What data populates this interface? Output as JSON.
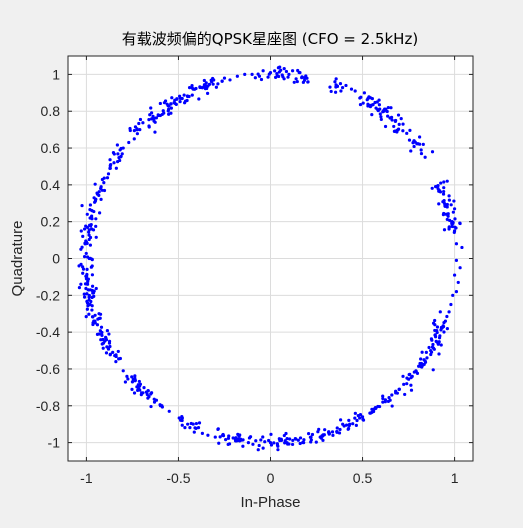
{
  "chart_data": {
    "type": "scatter",
    "title": "有载波频偏的QPSK星座图 (CFO = 2.5kHz)",
    "xlabel": "In-Phase",
    "ylabel": "Quadrature",
    "xlim": [
      -1.1,
      1.1
    ],
    "ylim": [
      -1.1,
      1.1
    ],
    "xticks": [
      -1,
      -0.5,
      0,
      0.5,
      1
    ],
    "xtick_labels": [
      "-1",
      "-0.5",
      "0",
      "0.5",
      "1"
    ],
    "yticks": [
      1,
      0.8,
      0.6,
      0.4,
      0.2,
      0,
      -0.2,
      -0.4,
      -0.6,
      -0.8,
      -1
    ],
    "ytick_labels": [
      "1",
      "0.8",
      "0.6",
      "0.4",
      "0.2",
      "0",
      "-0.2",
      "-0.4",
      "-0.6",
      "-0.8",
      "-1"
    ],
    "grid": true,
    "marker_color": "#0000ff",
    "background_color": "#f0f0f0",
    "axes_color": "#ffffff",
    "gaps_angle_deg": [
      [
        -16,
        8
      ],
      [
        24,
        35
      ],
      [
        61,
        67
      ],
      [
        71,
        77
      ],
      [
        95,
        105
      ],
      [
        138,
        143
      ],
      [
        214,
        220
      ],
      [
        234,
        240
      ],
      [
        247,
        251
      ]
    ],
    "series": [
      {
        "values": [
          [
            1.01,
            0.08
          ],
          [
            1.04,
            0.06
          ],
          [
            0.97,
            0.16
          ],
          [
            1.0,
            0.15
          ],
          [
            0.99,
            0.19
          ],
          [
            1.03,
            0.19
          ],
          [
            0.96,
            0.28
          ],
          [
            1.0,
            0.27
          ],
          [
            0.94,
            0.35
          ],
          [
            0.97,
            0.34
          ],
          [
            0.91,
            0.38
          ],
          [
            0.96,
            0.42
          ],
          [
            0.84,
            0.55
          ],
          [
            0.88,
            0.58
          ],
          [
            0.82,
            0.57
          ],
          [
            0.83,
            0.62
          ],
          [
            0.78,
            0.64
          ],
          [
            0.81,
            0.66
          ],
          [
            0.74,
            0.68
          ],
          [
            0.72,
            0.73
          ],
          [
            0.71,
            0.76
          ],
          [
            0.68,
            0.75
          ],
          [
            0.64,
            0.82
          ],
          [
            0.58,
            0.85
          ],
          [
            0.53,
            0.87
          ],
          [
            0.51,
            0.9
          ],
          [
            0.46,
            0.91
          ],
          [
            0.44,
            0.92
          ],
          [
            0.41,
            0.94
          ],
          [
            0.38,
            0.95
          ],
          [
            0.35,
            0.96
          ],
          [
            0.16,
            1.01
          ],
          [
            0.12,
            1.02
          ],
          [
            0.1,
            1.0
          ],
          [
            0.05,
            1.04
          ],
          [
            0.0,
            1.01
          ],
          [
            -0.04,
            1.02
          ],
          [
            -0.06,
            0.99
          ],
          [
            -0.1,
            1.0
          ],
          [
            -0.14,
            1.0
          ],
          [
            -0.18,
            0.99
          ],
          [
            -0.22,
            0.97
          ],
          [
            -0.25,
            0.98
          ],
          [
            -0.32,
            0.96
          ],
          [
            -0.35,
            0.93
          ],
          [
            -0.38,
            0.93
          ],
          [
            -0.42,
            0.92
          ],
          [
            -0.45,
            0.88
          ],
          [
            -0.49,
            0.87
          ],
          [
            -0.52,
            0.86
          ],
          [
            -0.54,
            0.84
          ],
          [
            -0.58,
            0.79
          ],
          [
            -0.61,
            0.78
          ],
          [
            -0.64,
            0.76
          ],
          [
            -0.66,
            0.72
          ],
          [
            -0.71,
            0.7
          ],
          [
            -0.74,
            0.65
          ],
          [
            -0.77,
            0.63
          ],
          [
            -0.8,
            0.6
          ],
          [
            -0.85,
            0.52
          ],
          [
            -0.87,
            0.49
          ],
          [
            -0.88,
            0.46
          ],
          [
            -0.92,
            0.39
          ],
          [
            -0.94,
            0.35
          ],
          [
            -0.95,
            0.32
          ],
          [
            -0.97,
            0.26
          ],
          [
            -0.98,
            0.22
          ],
          [
            -1.01,
            0.16
          ],
          [
            -1.02,
            0.12
          ],
          [
            -1.0,
            0.09
          ],
          [
            -1.03,
            0.05
          ],
          [
            -1.01,
            0.01
          ],
          [
            -1.04,
            -0.04
          ],
          [
            -1.02,
            -0.08
          ],
          [
            -1.0,
            -0.11
          ],
          [
            -1.03,
            -0.14
          ],
          [
            -0.99,
            -0.17
          ],
          [
            -1.01,
            -0.21
          ],
          [
            -0.98,
            -0.25
          ],
          [
            -0.97,
            -0.28
          ],
          [
            -0.96,
            -0.34
          ],
          [
            -0.94,
            -0.36
          ],
          [
            -0.93,
            -0.41
          ],
          [
            -0.91,
            -0.44
          ],
          [
            -0.88,
            -0.49
          ],
          [
            -0.87,
            -0.52
          ],
          [
            -0.84,
            -0.56
          ],
          [
            -0.8,
            -0.61
          ],
          [
            -0.78,
            -0.64
          ],
          [
            -0.75,
            -0.67
          ],
          [
            -0.72,
            -0.7
          ],
          [
            -0.7,
            -0.73
          ],
          [
            -0.66,
            -0.75
          ],
          [
            -0.63,
            -0.78
          ],
          [
            -0.59,
            -0.8
          ],
          [
            -0.55,
            -0.83
          ],
          [
            -0.48,
            -0.88
          ],
          [
            -0.45,
            -0.9
          ],
          [
            -0.41,
            -0.92
          ],
          [
            -0.37,
            -0.95
          ],
          [
            -0.34,
            -0.96
          ],
          [
            -0.3,
            -0.97
          ],
          [
            -0.26,
            -0.96
          ],
          [
            -0.23,
            -1.01
          ],
          [
            -0.19,
            -0.99
          ],
          [
            -0.15,
            -1.02
          ],
          [
            -0.12,
            -1.0
          ],
          [
            -0.08,
            -0.99
          ],
          [
            -0.04,
            -1.03
          ],
          [
            0.0,
            -1.0
          ],
          [
            0.04,
            -1.02
          ],
          [
            0.08,
            -0.99
          ],
          [
            0.12,
            -1.01
          ],
          [
            0.18,
            -1.0
          ],
          [
            0.22,
            -0.97
          ],
          [
            0.27,
            -0.97
          ],
          [
            0.32,
            -0.95
          ],
          [
            0.36,
            -0.94
          ],
          [
            0.4,
            -0.91
          ],
          [
            0.43,
            -0.9
          ],
          [
            0.47,
            -0.88
          ],
          [
            0.5,
            -0.86
          ],
          [
            0.54,
            -0.84
          ],
          [
            0.57,
            -0.81
          ],
          [
            0.61,
            -0.78
          ],
          [
            0.65,
            -0.77
          ],
          [
            0.68,
            -0.73
          ],
          [
            0.7,
            -0.71
          ],
          [
            0.74,
            -0.68
          ],
          [
            0.77,
            -0.64
          ],
          [
            0.79,
            -0.61
          ],
          [
            0.82,
            -0.57
          ],
          [
            0.85,
            -0.54
          ],
          [
            0.87,
            -0.5
          ],
          [
            0.9,
            -0.45
          ],
          [
            0.92,
            -0.42
          ],
          [
            0.94,
            -0.37
          ],
          [
            0.95,
            -0.34
          ],
          [
            0.97,
            -0.29
          ],
          [
            0.98,
            -0.25
          ],
          [
            0.99,
            -0.2
          ],
          [
            1.01,
            -0.18
          ],
          [
            1.02,
            -0.13
          ],
          [
            1.0,
            -0.09
          ],
          [
            1.03,
            -0.05
          ],
          [
            1.01,
            -0.01
          ]
        ]
      }
    ]
  }
}
